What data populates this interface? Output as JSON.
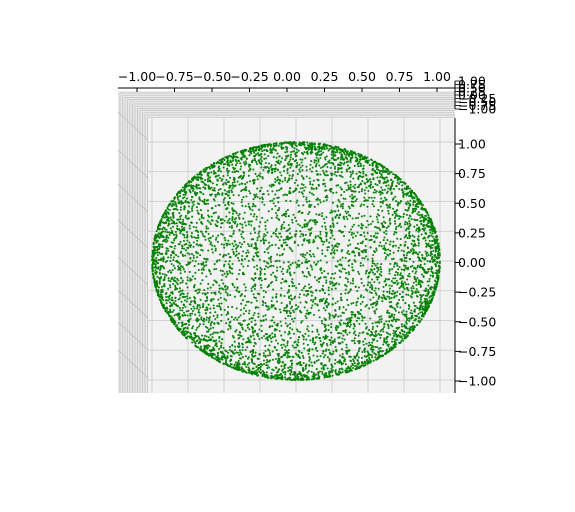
{
  "chart_data": {
    "type": "scatter",
    "projection": "3d",
    "view": "top-down, looking along the z-axis",
    "shape": "points sampled on the surface of a unit sphere",
    "point_count": 6000,
    "x": {
      "ticks": [
        -1.0,
        -0.75,
        -0.5,
        -0.25,
        0.0,
        0.25,
        0.5,
        0.75,
        1.0
      ],
      "tick_labels": [
        "−1.00",
        "−0.75",
        "−0.50",
        "−0.25",
        "0.00",
        "0.25",
        "0.50",
        "0.75",
        "1.00"
      ],
      "range": [
        -1.05,
        1.05
      ],
      "label": ""
    },
    "y": {
      "ticks": [
        -1.0,
        -0.75,
        -0.5,
        -0.25,
        0.0,
        0.25,
        0.5,
        0.75,
        1.0
      ],
      "tick_labels": [
        "−1.00",
        "−0.75",
        "−0.50",
        "−0.25",
        "0.00",
        "0.25",
        "0.50",
        "0.75",
        "1.00"
      ],
      "range": [
        -1.05,
        1.05
      ],
      "label": ""
    },
    "z": {
      "ticks": [
        -1.0,
        -0.75,
        -0.5,
        -0.25,
        0.0,
        0.25,
        0.5,
        0.75,
        1.0
      ],
      "tick_labels": [
        "−1.00",
        "−0.75",
        "−0.50",
        "−0.25",
        "0.00",
        "0.25",
        "0.50",
        "0.75",
        "1.00"
      ],
      "range": [
        -1.0,
        1.0
      ],
      "label": ""
    },
    "marker_color": "#008000",
    "pane_color": "#f2f2f2",
    "grid": true,
    "title": ""
  }
}
